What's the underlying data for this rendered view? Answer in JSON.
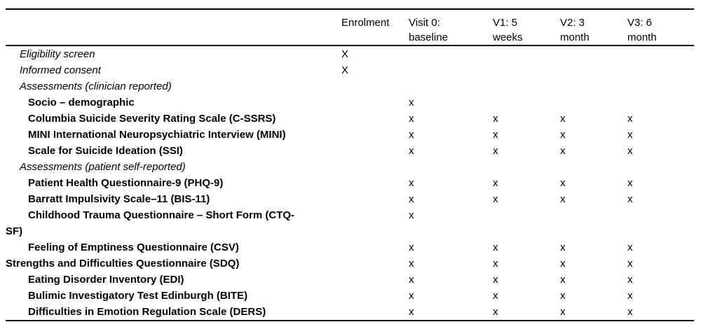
{
  "table": {
    "columns": [
      {
        "line1": "Enrolment",
        "line2": ""
      },
      {
        "line1": "Visit 0:",
        "line2": "baseline"
      },
      {
        "line1": "V1: 5",
        "line2": "weeks"
      },
      {
        "line1": "V2: 3",
        "line2": "month"
      },
      {
        "line1": "V3: 6",
        "line2": "month"
      }
    ],
    "rows": [
      {
        "label": "Eligibility screen",
        "style": "italic",
        "marks": [
          "X",
          "",
          "",
          "",
          ""
        ]
      },
      {
        "label": "Informed consent",
        "style": "italic",
        "marks": [
          "X",
          "",
          "",
          "",
          ""
        ]
      },
      {
        "label": "Assessments (clinician reported)",
        "style": "italic",
        "marks": [
          "",
          "",
          "",
          "",
          ""
        ]
      },
      {
        "label": "Socio – demographic",
        "style": "bold-indent",
        "marks": [
          "",
          "x",
          "",
          "",
          ""
        ]
      },
      {
        "label": "Columbia Suicide Severity Rating Scale (C-SSRS)",
        "style": "bold-indent",
        "marks": [
          "",
          "x",
          "x",
          "x",
          "x"
        ]
      },
      {
        "label": "MINI International Neuropsychiatric Interview (MINI)",
        "style": "bold-indent",
        "marks": [
          "",
          "x",
          "x",
          "x",
          "x"
        ]
      },
      {
        "label": "Scale for Suicide Ideation (SSI)",
        "style": "bold-indent",
        "marks": [
          "",
          "x",
          "x",
          "x",
          "x"
        ]
      },
      {
        "label": "Assessments (patient self-reported)",
        "style": "italic",
        "marks": [
          "",
          "",
          "",
          "",
          ""
        ]
      },
      {
        "label": "Patient Health Questionnaire-9 (PHQ-9)",
        "style": "bold-indent",
        "marks": [
          "",
          "x",
          "x",
          "x",
          "x"
        ]
      },
      {
        "label": "Barratt Impulsivity Scale–11 (BIS-11)",
        "style": "bold-indent",
        "marks": [
          "",
          "x",
          "x",
          "x",
          "x"
        ]
      },
      {
        "label": "Childhood Trauma Questionnaire – Short Form (CTQ-\nSF)",
        "style": "bold-indent",
        "marks": [
          "",
          "x",
          "",
          "",
          ""
        ]
      },
      {
        "label": "Feeling of Emptiness Questionnaire (CSV)",
        "style": "bold-indent",
        "marks": [
          "",
          "x",
          "x",
          "x",
          "x"
        ]
      },
      {
        "label": "Strengths and Difficulties Questionnaire (SDQ)",
        "style": "bold-flush",
        "marks": [
          "",
          "x",
          "x",
          "x",
          "x"
        ]
      },
      {
        "label": "Eating Disorder Inventory (EDI)",
        "style": "bold-indent",
        "marks": [
          "",
          "x",
          "x",
          "x",
          "x"
        ]
      },
      {
        "label": "Bulimic Investigatory Test Edinburgh (BITE)",
        "style": "bold-indent",
        "marks": [
          "",
          "x",
          "x",
          "x",
          "x"
        ]
      },
      {
        "label": "Difficulties in Emotion Regulation Scale (DERS)",
        "style": "bold-indent",
        "marks": [
          "",
          "x",
          "x",
          "x",
          "x"
        ]
      }
    ]
  }
}
